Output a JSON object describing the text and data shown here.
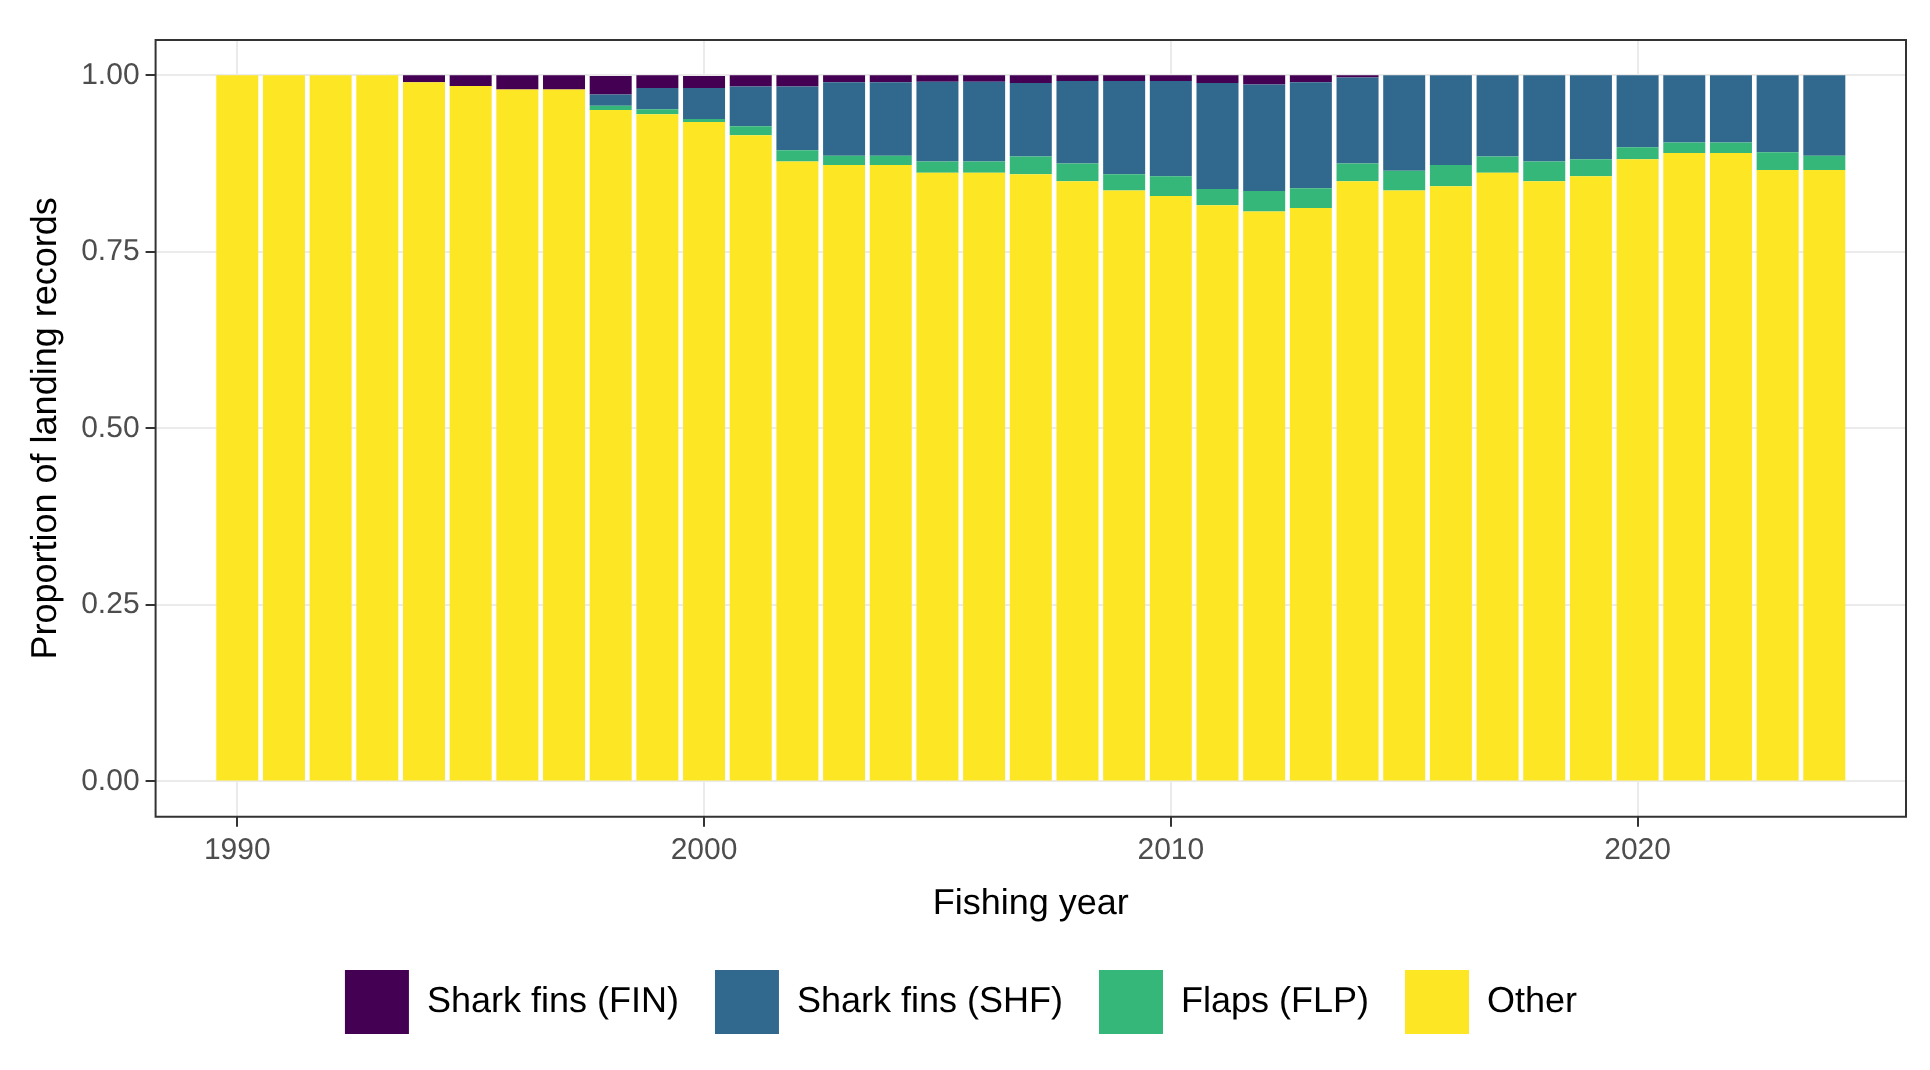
{
  "chart_data": {
    "type": "bar",
    "stacked": true,
    "xlabel": "Fishing year",
    "ylabel": "Proportion of landing records",
    "x": [
      1990,
      1991,
      1992,
      1993,
      1994,
      1995,
      1996,
      1997,
      1998,
      1999,
      2000,
      2001,
      2002,
      2003,
      2004,
      2005,
      2006,
      2007,
      2008,
      2009,
      2010,
      2011,
      2012,
      2013,
      2014,
      2015,
      2016,
      2017,
      2018,
      2019,
      2020,
      2021,
      2022,
      2023,
      2024
    ],
    "series": [
      {
        "name": "Other",
        "color": "#fde725",
        "values": [
          1,
          1,
          1,
          1,
          0.99,
          0.985,
          0.98,
          0.98,
          0.951,
          0.945,
          0.934,
          0.915,
          0.878,
          0.873,
          0.873,
          0.862,
          0.862,
          0.86,
          0.85,
          0.837,
          0.829,
          0.816,
          0.807,
          0.812,
          0.85,
          0.837,
          0.843,
          0.862,
          0.85,
          0.857,
          0.881,
          0.89,
          0.89,
          0.866,
          0.866
        ]
      },
      {
        "name": "Flaps (FLP)",
        "color": "#35b779",
        "values": [
          0,
          0,
          0,
          0,
          0,
          0,
          0,
          0,
          0.006,
          0.007,
          0.004,
          0.013,
          0.016,
          0.013,
          0.013,
          0.016,
          0.016,
          0.025,
          0.025,
          0.023,
          0.028,
          0.023,
          0.029,
          0.028,
          0.025,
          0.028,
          0.03,
          0.023,
          0.028,
          0.024,
          0.017,
          0.015,
          0.015,
          0.025,
          0.02
        ]
      },
      {
        "name": "Shark fins (SHF)",
        "color": "#31688e",
        "values": [
          0,
          0,
          0,
          0,
          0,
          0,
          0,
          0,
          0.016,
          0.03,
          0.044,
          0.056,
          0.09,
          0.104,
          0.104,
          0.113,
          0.113,
          0.104,
          0.117,
          0.132,
          0.135,
          0.15,
          0.151,
          0.15,
          0.122,
          0.135,
          0.127,
          0.115,
          0.122,
          0.119,
          0.102,
          0.095,
          0.095,
          0.109,
          0.114
        ]
      },
      {
        "name": "Shark fins (FIN)",
        "color": "#440154",
        "values": [
          0,
          0,
          0,
          0,
          0.01,
          0.015,
          0.02,
          0.02,
          0.026,
          0.018,
          0.017,
          0.016,
          0.016,
          0.01,
          0.01,
          0.009,
          0.009,
          0.011,
          0.008,
          0.008,
          0.008,
          0.011,
          0.013,
          0.01,
          0.003,
          0,
          0,
          0,
          0,
          0,
          0,
          0,
          0,
          0,
          0
        ]
      }
    ],
    "xlim": [
      1988.25,
      2025.75
    ],
    "xticks": [
      1990,
      2000,
      2010,
      2020
    ],
    "ylim": [
      -0.05,
      1.05
    ],
    "yticks": [
      {
        "value": 0,
        "label": "0.00"
      },
      {
        "value": 0.25,
        "label": "0.25"
      },
      {
        "value": 0.5,
        "label": "0.50"
      },
      {
        "value": 0.75,
        "label": "0.75"
      },
      {
        "value": 1,
        "label": "1.00"
      }
    ],
    "grid": true,
    "legend": "bottom"
  }
}
